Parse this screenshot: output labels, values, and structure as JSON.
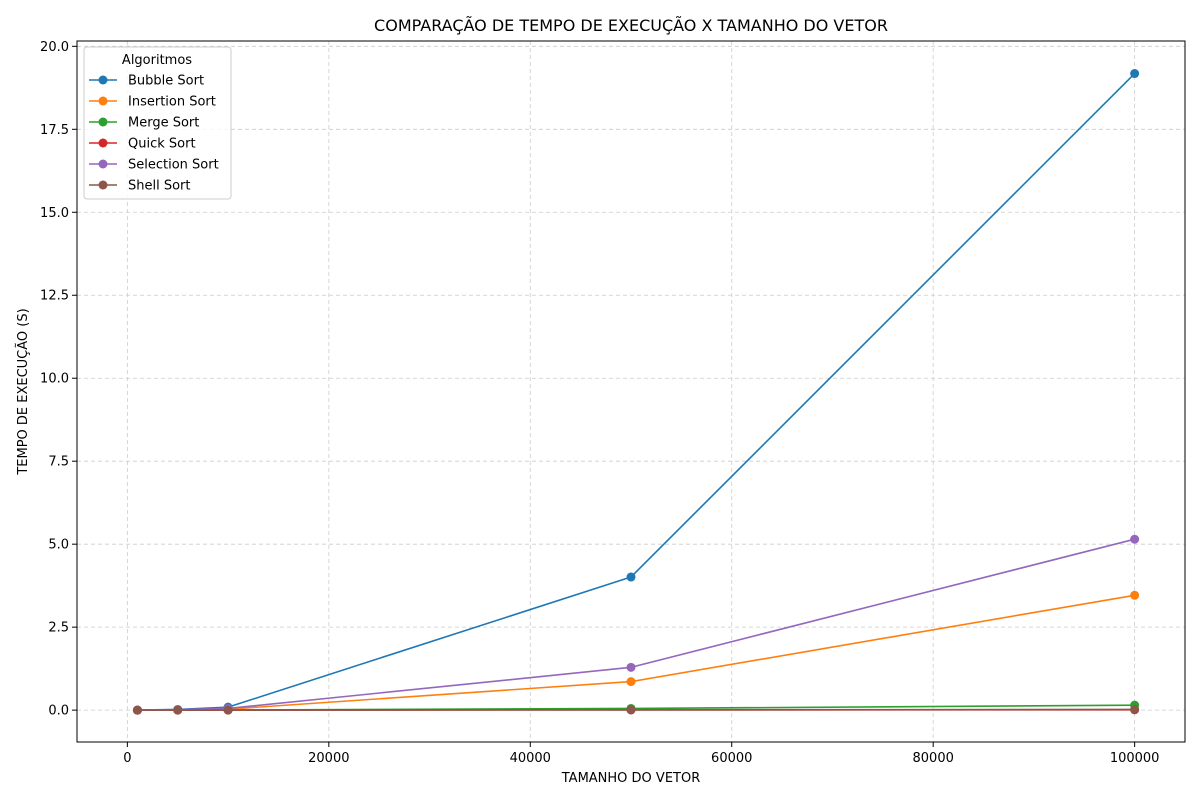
{
  "chart_data": {
    "type": "line",
    "title": "COMPARAÇÃO DE TEMPO DE EXECUÇÃO X TAMANHO DO VETOR",
    "xlabel": "TAMANHO DO VETOR",
    "ylabel": "TEMPO DE EXECUÇÃO (S)",
    "x": [
      1000,
      5000,
      10000,
      50000,
      100000
    ],
    "xlim": [
      -5000,
      105000
    ],
    "ylim": [
      -0.96,
      20.16
    ],
    "xticks": [
      0,
      20000,
      40000,
      60000,
      80000,
      100000
    ],
    "xtick_labels": [
      "0",
      "20000",
      "40000",
      "60000",
      "80000",
      "100000"
    ],
    "yticks": [
      0,
      2.5,
      5,
      7.5,
      10,
      12.5,
      15,
      17.5,
      20
    ],
    "ytick_labels": [
      "0.0",
      "2.5",
      "5.0",
      "7.5",
      "10.0",
      "12.5",
      "15.0",
      "17.5",
      "20.0"
    ],
    "grid": true,
    "legend": {
      "title": "Algoritmos",
      "placement": "upper-left"
    },
    "series": [
      {
        "name": "Bubble Sort",
        "color": "#1f77b4",
        "values": [
          0.002,
          0.02,
          0.09,
          4.01,
          19.18
        ]
      },
      {
        "name": "Insertion Sort",
        "color": "#ff7f0e",
        "values": [
          0.0005,
          0.01,
          0.03,
          0.86,
          3.46
        ]
      },
      {
        "name": "Merge Sort",
        "color": "#2ca02c",
        "values": [
          0.0005,
          0.002,
          0.004,
          0.05,
          0.15
        ]
      },
      {
        "name": "Quick Sort",
        "color": "#d62728",
        "values": [
          0.0001,
          0.0005,
          0.001,
          0.005,
          0.01
        ]
      },
      {
        "name": "Selection Sort",
        "color": "#9467bd",
        "values": [
          0.001,
          0.015,
          0.05,
          1.29,
          5.15
        ]
      },
      {
        "name": "Shell Sort",
        "color": "#8c564b",
        "values": [
          0.0001,
          0.001,
          0.002,
          0.01,
          0.02
        ]
      }
    ]
  }
}
